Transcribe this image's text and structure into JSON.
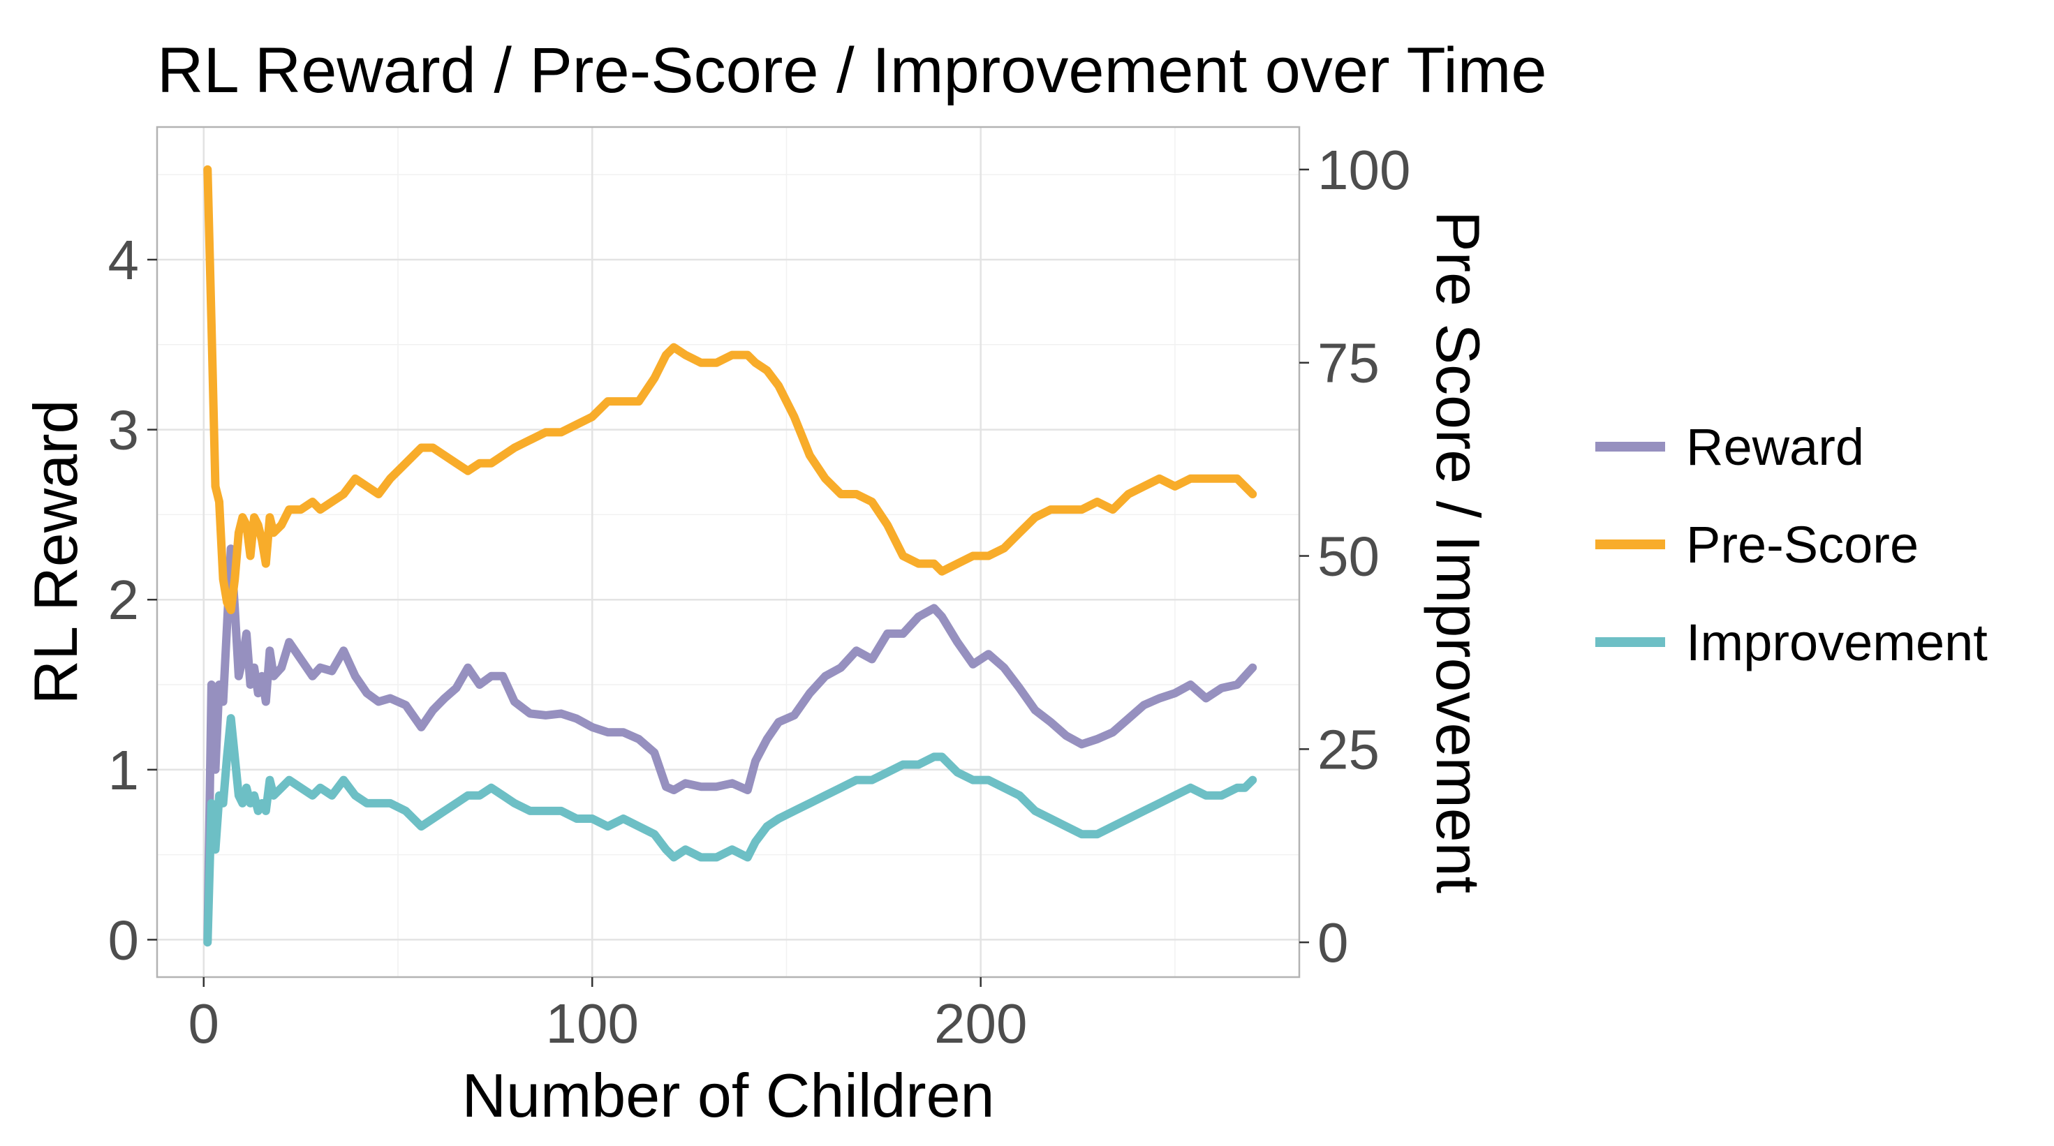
{
  "chart_data": {
    "type": "line",
    "title": "RL Reward / Pre-Score / Improvement over Time",
    "xlabel": "Number of Children",
    "ylabel": "RL Reward",
    "ylabel_right": "Pre Score / Improvement",
    "xlim": [
      -12,
      282
    ],
    "ylim": [
      -0.22,
      4.78
    ],
    "ylim_right": [
      -4.5,
      105.5
    ],
    "x_ticks": [
      0,
      100,
      200
    ],
    "y_ticks": [
      0,
      1,
      2,
      3,
      4
    ],
    "y_ticks_right": [
      0,
      25,
      50,
      75,
      100
    ],
    "grid": true,
    "legend_position": "right",
    "series": [
      {
        "name": "Reward",
        "color": "#9690bf",
        "axis": "left",
        "x": [
          1,
          2,
          3,
          4,
          5,
          6,
          7,
          8,
          9,
          10,
          11,
          12,
          13,
          14,
          15,
          16,
          17,
          18,
          20,
          22,
          25,
          28,
          30,
          33,
          36,
          39,
          42,
          45,
          48,
          52,
          56,
          59,
          62,
          65,
          68,
          71,
          74,
          77,
          80,
          84,
          88,
          92,
          96,
          100,
          104,
          108,
          112,
          116,
          119,
          121,
          124,
          128,
          132,
          136,
          140,
          142,
          145,
          148,
          152,
          156,
          160,
          164,
          168,
          172,
          176,
          180,
          184,
          188,
          190,
          194,
          198,
          202,
          206,
          210,
          214,
          218,
          222,
          226,
          230,
          234,
          238,
          242,
          246,
          250,
          254,
          258,
          262,
          266,
          268,
          270
        ],
        "y": [
          0.0,
          1.5,
          1.0,
          1.5,
          1.4,
          1.85,
          2.3,
          1.95,
          1.55,
          1.65,
          1.8,
          1.5,
          1.6,
          1.45,
          1.55,
          1.4,
          1.7,
          1.55,
          1.6,
          1.75,
          1.65,
          1.55,
          1.6,
          1.58,
          1.7,
          1.55,
          1.45,
          1.4,
          1.42,
          1.38,
          1.25,
          1.35,
          1.42,
          1.48,
          1.6,
          1.5,
          1.55,
          1.55,
          1.4,
          1.33,
          1.32,
          1.33,
          1.3,
          1.25,
          1.22,
          1.22,
          1.18,
          1.1,
          0.9,
          0.88,
          0.92,
          0.9,
          0.9,
          0.92,
          0.88,
          1.05,
          1.18,
          1.28,
          1.32,
          1.45,
          1.55,
          1.6,
          1.7,
          1.65,
          1.8,
          1.8,
          1.9,
          1.95,
          1.9,
          1.75,
          1.62,
          1.68,
          1.6,
          1.48,
          1.35,
          1.28,
          1.2,
          1.15,
          1.18,
          1.22,
          1.3,
          1.38,
          1.42,
          1.45,
          1.5,
          1.42,
          1.48,
          1.5,
          1.55,
          1.6
        ]
      },
      {
        "name": "Pre-Score",
        "color": "#f8ac2a",
        "axis": "right",
        "x": [
          1,
          2,
          3,
          4,
          5,
          6,
          7,
          8,
          9,
          10,
          11,
          12,
          13,
          14,
          15,
          16,
          17,
          18,
          20,
          22,
          25,
          28,
          30,
          33,
          36,
          39,
          42,
          45,
          48,
          52,
          56,
          59,
          62,
          65,
          68,
          71,
          74,
          77,
          80,
          84,
          88,
          92,
          96,
          100,
          104,
          108,
          112,
          116,
          119,
          121,
          124,
          128,
          132,
          136,
          140,
          142,
          145,
          148,
          152,
          156,
          160,
          164,
          168,
          172,
          176,
          180,
          184,
          188,
          190,
          194,
          198,
          202,
          206,
          210,
          214,
          218,
          222,
          226,
          230,
          234,
          238,
          242,
          246,
          250,
          254,
          258,
          262,
          266,
          268,
          270
        ],
        "y": [
          100,
          80,
          59,
          57,
          47,
          44,
          43,
          47,
          53,
          55,
          54,
          50,
          55,
          54,
          52,
          49,
          55,
          53,
          54,
          56,
          56,
          57,
          56,
          57,
          58,
          60,
          59,
          58,
          60,
          62,
          64,
          64,
          63,
          62,
          61,
          62,
          62,
          63,
          64,
          65,
          66,
          66,
          67,
          68,
          70,
          70,
          70,
          73,
          76,
          77,
          76,
          75,
          75,
          76,
          76,
          75,
          74,
          72,
          68,
          63,
          60,
          58,
          58,
          57,
          54,
          50,
          49,
          49,
          48,
          49,
          50,
          50,
          51,
          53,
          55,
          56,
          56,
          56,
          57,
          56,
          58,
          59,
          60,
          59,
          60,
          60,
          60,
          60,
          59,
          58
        ]
      },
      {
        "name": "Improvement",
        "color": "#6dbfc5",
        "axis": "right",
        "x": [
          1,
          2,
          3,
          4,
          5,
          6,
          7,
          8,
          9,
          10,
          11,
          12,
          13,
          14,
          15,
          16,
          17,
          18,
          20,
          22,
          25,
          28,
          30,
          33,
          36,
          39,
          42,
          45,
          48,
          52,
          56,
          59,
          62,
          65,
          68,
          71,
          74,
          77,
          80,
          84,
          88,
          92,
          96,
          100,
          104,
          108,
          112,
          116,
          119,
          121,
          124,
          128,
          132,
          136,
          140,
          142,
          145,
          148,
          152,
          156,
          160,
          164,
          168,
          172,
          176,
          180,
          184,
          188,
          190,
          194,
          198,
          202,
          206,
          210,
          214,
          218,
          222,
          226,
          230,
          234,
          238,
          242,
          246,
          250,
          254,
          258,
          262,
          266,
          268,
          270
        ],
        "y": [
          0,
          18,
          12,
          19,
          18,
          24,
          29,
          24,
          19,
          18,
          20,
          18,
          19,
          17,
          18,
          17,
          21,
          19,
          20,
          21,
          20,
          19,
          20,
          19,
          21,
          19,
          18,
          18,
          18,
          17,
          15,
          16,
          17,
          18,
          19,
          19,
          20,
          19,
          18,
          17,
          17,
          17,
          16,
          16,
          15,
          16,
          15,
          14,
          12,
          11,
          12,
          11,
          11,
          12,
          11,
          13,
          15,
          16,
          17,
          18,
          19,
          20,
          21,
          21,
          22,
          23,
          23,
          24,
          24,
          22,
          21,
          21,
          20,
          19,
          17,
          16,
          15,
          14,
          14,
          15,
          16,
          17,
          18,
          19,
          20,
          19,
          19,
          20,
          20,
          21
        ]
      }
    ]
  }
}
